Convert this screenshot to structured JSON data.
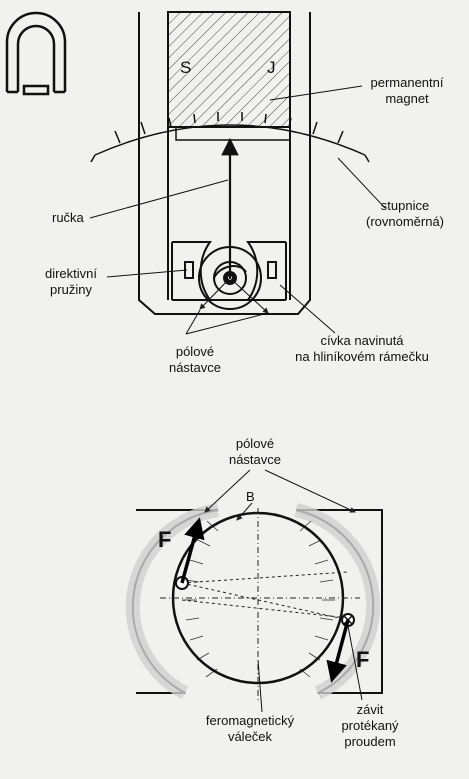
{
  "top_figure": {
    "pole_south": "S",
    "pole_north": "J",
    "magnet": [
      "permanentní",
      "magnet"
    ],
    "pointer": "ručka",
    "scale": [
      "stupnice",
      "(rovnoměrná)"
    ],
    "springs": [
      "direktivní",
      "pružiny"
    ],
    "pole_pieces": [
      "pólové",
      "nástavce"
    ],
    "coil": [
      "cívka navinutá",
      "na hliníkovém rámečku"
    ]
  },
  "bottom_figure": {
    "pole_pieces": [
      "pólové",
      "nástavce"
    ],
    "field": "B",
    "force_left": "F",
    "force_right": "F",
    "cylinder": [
      "feromagnetický",
      "váleček"
    ],
    "winding": [
      "závit",
      "protékaný",
      "proudem"
    ]
  }
}
